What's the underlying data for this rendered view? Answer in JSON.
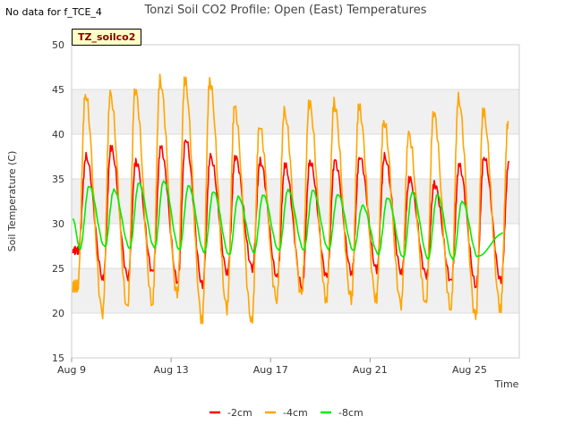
{
  "note": "No data for f_TCE_4",
  "badge": "TZ_soilco2",
  "chart_data": {
    "type": "line",
    "title": "Tonzi Soil CO2 Profile: Open (East) Temperatures",
    "xlabel": "Time",
    "ylabel": "Soil Temperature (C)",
    "xlim": [
      9.0,
      27.0
    ],
    "ylim": [
      15,
      50
    ],
    "xticks": [
      {
        "value": 9,
        "label": "Aug 9"
      },
      {
        "value": 13,
        "label": "Aug 13"
      },
      {
        "value": 17,
        "label": "Aug 17"
      },
      {
        "value": 21,
        "label": "Aug 21"
      },
      {
        "value": 25,
        "label": "Aug 25"
      }
    ],
    "yticks": [
      15,
      20,
      25,
      30,
      35,
      40,
      45,
      50
    ],
    "grid": "horizontal bands",
    "legend_position": "bottom",
    "x_start_day": 9.0,
    "day_start": 9,
    "series": [
      {
        "name": "-2cm",
        "color": "#ff0000",
        "min": [
          27.0,
          23.8,
          24.0,
          24.5,
          23.5,
          23.0,
          24.5,
          25.0,
          24.0,
          22.9,
          24.0,
          24.5,
          24.8,
          24.5,
          24.2,
          23.5,
          23.0,
          23.5,
          23.8,
          23.0,
          24.5,
          26.0
        ],
        "max": [
          37.5,
          38.5,
          37.0,
          38.5,
          39.5,
          37.5,
          37.5,
          37.0,
          36.5,
          37.0,
          37.0,
          37.5,
          37.5,
          35.0,
          34.5,
          36.5,
          37.5,
          37.0,
          38.0
        ],
        "start": 27.0
      },
      {
        "name": "-4cm",
        "color": "#ffa500",
        "min": [
          23.0,
          20.0,
          20.5,
          21.0,
          22.0,
          19.2,
          20.5,
          19.0,
          21.5,
          22.0,
          21.5,
          21.5,
          21.5,
          21.0,
          21.0,
          20.5,
          19.5,
          20.5,
          19.5,
          23.0
        ],
        "max": [
          44.5,
          44.5,
          45.0,
          46.0,
          46.0,
          46.0,
          43.0,
          41.0,
          42.5,
          43.5,
          43.5,
          43.0,
          41.5,
          40.0,
          42.5,
          44.0,
          42.5,
          41.5
        ],
        "start": 23.0
      },
      {
        "name": "-8cm",
        "color": "#00ee00",
        "min": [
          27.2,
          27.4,
          27.3,
          27.3,
          27.1,
          26.8,
          26.5,
          26.8,
          27.0,
          27.1,
          27.1,
          27.0,
          26.6,
          26.2,
          26.1,
          26.0,
          26.3,
          29.0
        ],
        "max": [
          34.2,
          33.8,
          34.5,
          34.8,
          34.2,
          33.6,
          33.0,
          33.2,
          33.8,
          33.7,
          33.3,
          32.0,
          32.9,
          33.5,
          33.2,
          32.5
        ],
        "start": 30.5
      }
    ]
  }
}
